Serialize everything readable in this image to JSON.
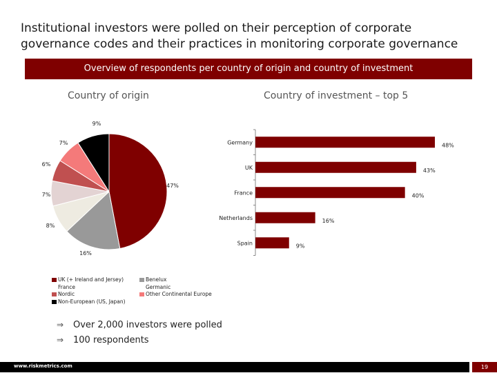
{
  "title": "Institutional investors were polled on their perception of corporate governance codes and their practices in monitoring corporate governance",
  "banner": "Overview of respondents per country of origin and country of investment",
  "left_subtitle": "Country of origin",
  "right_subtitle": "Country of investment – top 5",
  "chart_data": [
    {
      "type": "pie",
      "title": "Country of origin",
      "slices": [
        {
          "label": "UK (+ Ireland and Jersey)",
          "value": 47,
          "value_label": "47%",
          "color": "#7f0000"
        },
        {
          "label": "Benelux",
          "value": 16,
          "value_label": "16%",
          "color": "#999999"
        },
        {
          "label": "France",
          "value": 8,
          "value_label": "8%",
          "color": "#eeebe1"
        },
        {
          "label": "Germanic",
          "value": 7,
          "value_label": "7%",
          "color": "#e3d3d3"
        },
        {
          "label": "Nordic",
          "value": 6,
          "value_label": "6%",
          "color": "#c05050"
        },
        {
          "label": "Other Continental Europe",
          "value": 7,
          "value_label": "7%",
          "color": "#f47a7a"
        },
        {
          "label": "Non-European (US, Japan)",
          "value": 9,
          "value_label": "9%",
          "color": "#000000"
        }
      ]
    },
    {
      "type": "bar",
      "orientation": "horizontal",
      "title": "Country of investment – top 5",
      "categories": [
        "Germany",
        "UK",
        "France",
        "Netherlands",
        "Spain"
      ],
      "values": [
        48,
        43,
        40,
        16,
        9
      ],
      "value_labels": [
        "48%",
        "43%",
        "40%",
        "16%",
        "9%"
      ],
      "xlim": [
        0,
        50
      ],
      "color": "#7f0000"
    }
  ],
  "legend": {
    "col1": [
      {
        "label": "UK (+ Ireland and Jersey)",
        "color": "#7f0000"
      },
      {
        "label": "France",
        "color": ""
      },
      {
        "label": "Nordic",
        "color": "#c05050"
      },
      {
        "label": "Non-European (US, Japan)",
        "color": "#000000"
      }
    ],
    "col2": [
      {
        "label": "Benelux",
        "color": "#999999"
      },
      {
        "label": "Germanic",
        "color": ""
      },
      {
        "label": "Other Continental Europe",
        "color": "#f47a7a"
      }
    ]
  },
  "bullets": [
    "Over 2,000 investors were polled",
    "100 respondents"
  ],
  "footer": {
    "url": "www.riskmetrics.com",
    "page": "19"
  }
}
